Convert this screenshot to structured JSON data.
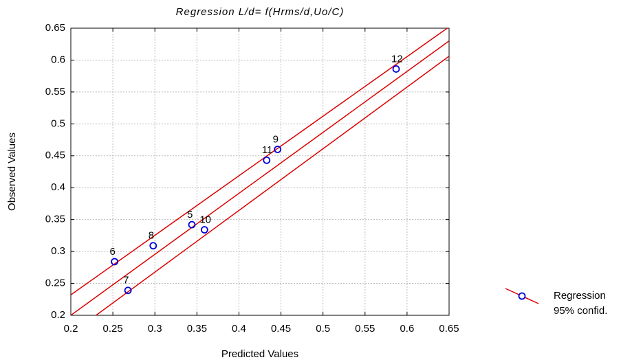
{
  "chart_data": {
    "type": "scatter",
    "title": "Regression  L/d= f(Hrms/d,Uo/C)",
    "x_label": "Predicted Values",
    "y_label": "Observed Values",
    "xlim": [
      0.2,
      0.65
    ],
    "ylim": [
      0.2,
      0.65
    ],
    "xticks": [
      0.2,
      0.25,
      0.3,
      0.35,
      0.4,
      0.45,
      0.5,
      0.55,
      0.6,
      0.65
    ],
    "yticks": [
      0.2,
      0.25,
      0.3,
      0.35,
      0.4,
      0.45,
      0.5,
      0.55,
      0.6,
      0.65
    ],
    "grid": true,
    "series": [
      {
        "name": "Regression",
        "color": "#0000dd",
        "line_color": "#dd0000",
        "x": [
          0.252,
          0.268,
          0.298,
          0.344,
          0.359,
          0.433,
          0.446,
          0.587
        ],
        "values": [
          0.284,
          0.239,
          0.309,
          0.342,
          0.334,
          0.443,
          0.46,
          0.586
        ],
        "labels": [
          "6",
          "7",
          "8",
          "5",
          "10",
          "11",
          "9",
          "12"
        ],
        "fit_x": [
          0.2,
          0.65
        ],
        "fit_values": [
          0.2,
          0.63
        ]
      },
      {
        "name": "95% confid.",
        "color": "#dd0000",
        "x": [
          0.2,
          0.65
        ],
        "upper": [
          0.232,
          0.652
        ],
        "lower": [
          0.171,
          0.606
        ]
      }
    ]
  }
}
